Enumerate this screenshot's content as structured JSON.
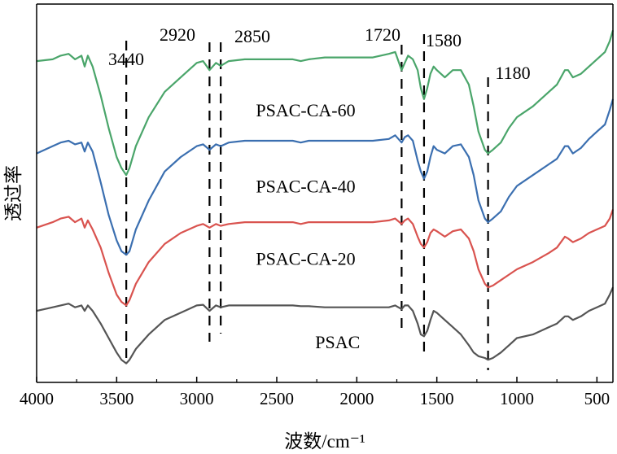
{
  "chart_data": {
    "type": "line",
    "title": "",
    "xlabel": "波数/cm⁻¹",
    "ylabel": "透过率",
    "xlim": [
      4000,
      400
    ],
    "x_reversed": true,
    "y_ticks_shown": false,
    "grid": false,
    "legend": "none",
    "x_ticks": [
      "4000",
      "3500",
      "3000",
      "2500",
      "2000",
      "1500",
      "1000",
      "500"
    ],
    "peak_lines": [
      {
        "label": "3440",
        "x": 3440
      },
      {
        "label": "2920",
        "x": 2920
      },
      {
        "label": "2850",
        "x": 2850
      },
      {
        "label": "1720",
        "x": 1720
      },
      {
        "label": "1580",
        "x": 1580
      },
      {
        "label": "1180",
        "x": 1180
      }
    ],
    "series": [
      {
        "name": "PSAC-CA-60",
        "color": "#4aa56a",
        "x": [
          4000,
          3900,
          3850,
          3800,
          3760,
          3720,
          3700,
          3680,
          3650,
          3600,
          3550,
          3500,
          3470,
          3440,
          3420,
          3380,
          3300,
          3200,
          3100,
          3000,
          2960,
          2920,
          2880,
          2850,
          2800,
          2700,
          2600,
          2500,
          2400,
          2350,
          2300,
          2200,
          2100,
          2000,
          1900,
          1800,
          1760,
          1720,
          1700,
          1680,
          1650,
          1620,
          1600,
          1580,
          1560,
          1540,
          1520,
          1500,
          1450,
          1400,
          1350,
          1300,
          1270,
          1240,
          1200,
          1180,
          1150,
          1100,
          1050,
          1000,
          900,
          800,
          750,
          700,
          680,
          650,
          600,
          550,
          500,
          450,
          420,
          400
        ],
        "y": [
          86.5,
          87,
          88,
          88.5,
          87,
          88,
          85,
          88,
          85,
          77,
          68,
          60,
          57,
          55,
          57,
          63,
          71,
          78,
          82,
          86,
          86.5,
          84,
          86,
          85.2,
          86.5,
          87,
          87,
          87,
          87,
          86.5,
          87,
          87.5,
          87.5,
          87.5,
          87.5,
          88.5,
          89,
          84,
          86,
          88,
          87,
          84,
          79,
          76,
          79,
          83,
          85,
          84,
          82,
          84,
          84,
          80,
          74,
          67,
          62,
          61,
          62,
          64,
          68,
          71,
          74,
          78,
          80,
          84,
          84,
          82,
          83,
          85,
          87,
          89,
          92,
          95
        ]
      },
      {
        "name": "PSAC-CA-40",
        "color": "#3b6fb0",
        "x": [
          4000,
          3900,
          3850,
          3800,
          3760,
          3720,
          3700,
          3680,
          3650,
          3600,
          3550,
          3500,
          3470,
          3440,
          3420,
          3380,
          3300,
          3200,
          3100,
          3000,
          2960,
          2920,
          2880,
          2850,
          2800,
          2700,
          2600,
          2500,
          2400,
          2350,
          2300,
          2200,
          2100,
          2000,
          1900,
          1800,
          1760,
          1720,
          1700,
          1680,
          1650,
          1620,
          1600,
          1580,
          1560,
          1540,
          1520,
          1500,
          1450,
          1400,
          1350,
          1300,
          1270,
          1240,
          1200,
          1180,
          1150,
          1100,
          1050,
          1000,
          900,
          800,
          750,
          700,
          680,
          650,
          600,
          550,
          500,
          450,
          420,
          400
        ],
        "y": [
          61,
          63,
          64,
          64.5,
          63.5,
          64,
          61.5,
          64,
          61.5,
          53,
          44,
          37,
          34,
          33,
          34,
          40,
          48,
          56,
          60,
          63,
          63.5,
          62,
          63.5,
          63,
          64,
          64.5,
          64.5,
          64.5,
          64.5,
          64,
          64.5,
          64.5,
          64.5,
          64.5,
          64.5,
          65,
          66,
          64,
          65.5,
          66,
          64.5,
          59,
          56,
          54,
          56,
          60,
          63,
          62,
          61,
          63,
          63.5,
          60,
          55,
          48,
          43,
          42,
          43,
          45,
          49,
          52,
          55,
          58,
          59.5,
          63,
          63,
          61,
          62.5,
          65,
          67,
          69,
          73,
          76
        ]
      },
      {
        "name": "PSAC-CA-20",
        "color": "#d9534f",
        "x": [
          4000,
          3900,
          3850,
          3800,
          3760,
          3720,
          3700,
          3680,
          3650,
          3600,
          3550,
          3500,
          3470,
          3440,
          3420,
          3380,
          3300,
          3200,
          3100,
          3000,
          2960,
          2920,
          2880,
          2850,
          2800,
          2700,
          2600,
          2500,
          2400,
          2350,
          2300,
          2200,
          2100,
          2000,
          1900,
          1800,
          1760,
          1720,
          1700,
          1680,
          1650,
          1620,
          1600,
          1580,
          1560,
          1540,
          1520,
          1500,
          1450,
          1400,
          1350,
          1300,
          1270,
          1240,
          1200,
          1180,
          1150,
          1100,
          1050,
          1000,
          900,
          800,
          750,
          700,
          680,
          650,
          600,
          550,
          500,
          450,
          420,
          400
        ],
        "y": [
          40.5,
          42,
          43,
          43.5,
          42,
          43,
          40.5,
          42.5,
          40,
          35,
          28,
          22,
          20,
          19,
          20.5,
          25,
          31,
          36,
          39,
          41,
          41.5,
          40.5,
          41.5,
          41,
          41.5,
          42,
          42,
          42,
          42,
          41.5,
          42,
          42,
          42,
          42,
          42,
          42.5,
          43,
          41.5,
          42.5,
          43,
          41.5,
          38,
          36,
          35,
          36.5,
          39,
          40,
          39.5,
          38,
          39.5,
          40,
          37.5,
          34,
          29,
          25,
          24,
          24.5,
          26,
          27.5,
          29,
          31,
          33.5,
          35,
          38,
          37.5,
          36.5,
          37.5,
          39,
          40,
          41,
          43,
          45.5
        ]
      },
      {
        "name": "PSAC",
        "color": "#555555",
        "x": [
          4000,
          3900,
          3850,
          3800,
          3760,
          3720,
          3700,
          3680,
          3650,
          3600,
          3550,
          3500,
          3470,
          3440,
          3420,
          3380,
          3300,
          3200,
          3100,
          3000,
          2960,
          2920,
          2880,
          2850,
          2800,
          2700,
          2600,
          2500,
          2400,
          2350,
          2300,
          2200,
          2100,
          2000,
          1900,
          1800,
          1760,
          1720,
          1700,
          1680,
          1650,
          1620,
          1600,
          1580,
          1560,
          1540,
          1520,
          1500,
          1450,
          1400,
          1350,
          1300,
          1270,
          1240,
          1200,
          1180,
          1150,
          1100,
          1050,
          1000,
          900,
          800,
          750,
          700,
          680,
          650,
          600,
          550,
          500,
          450,
          420,
          400
        ],
        "y": [
          17.5,
          18.5,
          19,
          19.5,
          18.5,
          19,
          17.5,
          19,
          17.5,
          14,
          10,
          6,
          4,
          3,
          4,
          7,
          11,
          15,
          17,
          19,
          19.2,
          17.5,
          19,
          18.5,
          19,
          19,
          19,
          19,
          19,
          18.8,
          18.8,
          18.5,
          18.5,
          18.5,
          18.5,
          18.5,
          19,
          18,
          19,
          19,
          17.5,
          14,
          11,
          10.5,
          12,
          15,
          17.5,
          17,
          15,
          13,
          11,
          8,
          6,
          5,
          4.5,
          4,
          4.5,
          6,
          8,
          10,
          11,
          13,
          14,
          16,
          16,
          15,
          16,
          17.5,
          18.5,
          19.5,
          22,
          24
        ]
      }
    ],
    "series_labels": [
      {
        "text": "PSAC-CA-60",
        "anchor_x": 1750,
        "value": 73
      },
      {
        "text": "PSAC-CA-40",
        "anchor_x": 1750,
        "value": 52
      },
      {
        "text": "PSAC-CA-20",
        "anchor_x": 1750,
        "value": 32
      },
      {
        "text": "PSAC",
        "anchor_x": 1550,
        "value": 9
      }
    ]
  }
}
